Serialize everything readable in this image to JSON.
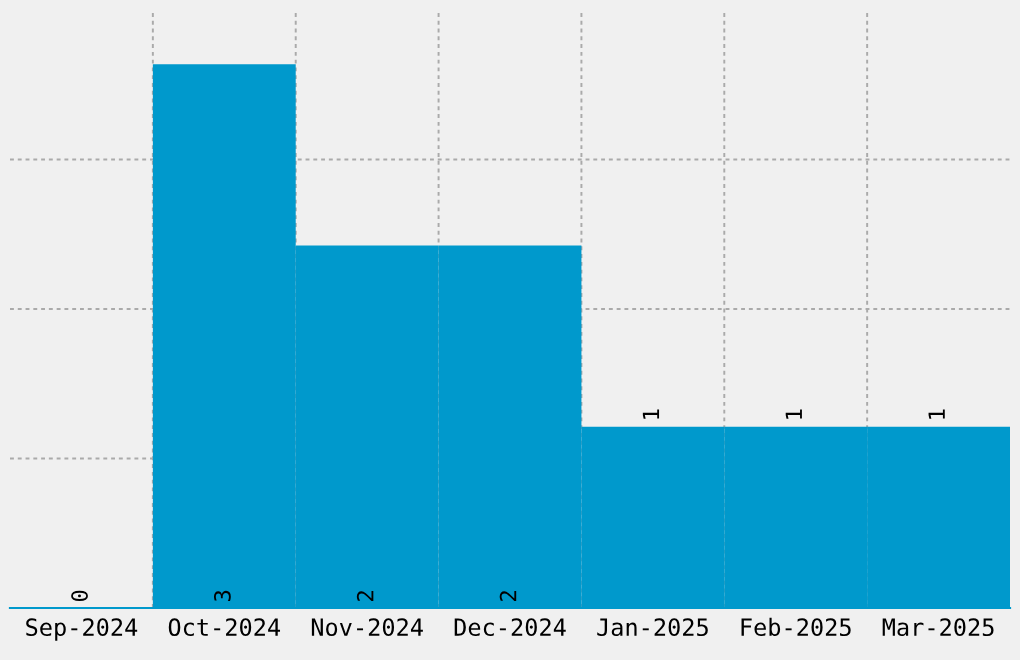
{
  "chart_data": {
    "type": "bar",
    "categories": [
      "Sep-2024",
      "Oct-2024",
      "Nov-2024",
      "Dec-2024",
      "Jan-2025",
      "Feb-2025",
      "Mar-2025"
    ],
    "values": [
      0,
      3,
      2,
      2,
      1,
      1,
      1
    ],
    "color": "#0099cc",
    "ylim": [
      0,
      3.3
    ],
    "yticks": [
      {
        "value": 0.825,
        "label": null
      },
      {
        "value": 1.65,
        "label": null
      },
      {
        "value": 2.475,
        "label": null
      }
    ],
    "tick_labels": "x",
    "data_labels": true,
    "grid": true,
    "legend": false
  }
}
